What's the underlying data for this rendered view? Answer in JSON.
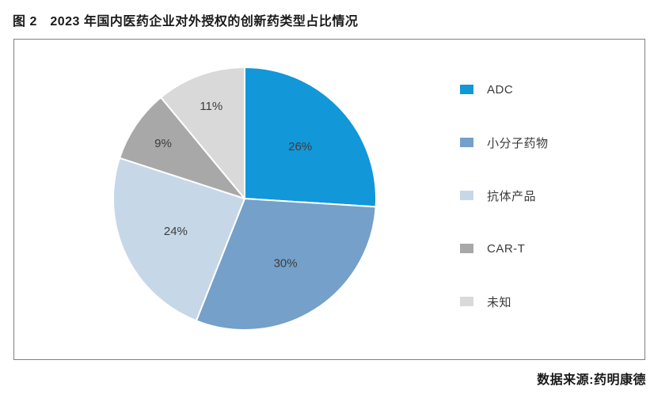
{
  "title": "图 2　2023 年国内医药企业对外授权的创新药类型占比情况",
  "source": "数据来源:药明康德",
  "chart_data": {
    "type": "pie",
    "title": "2023 年国内医药企业对外授权的创新药类型占比情况",
    "start_angle_deg": 0,
    "direction": "clockwise",
    "legend_position": "right",
    "label_format": "percent",
    "slice_border_color": "#ffffff",
    "slices": [
      {
        "id": "adc",
        "label": "ADC",
        "value": 26,
        "label_text": "26%",
        "color": "#1297d9"
      },
      {
        "id": "small-molecule",
        "label": "小分子药物",
        "value": 30,
        "label_text": "30%",
        "color": "#74a0c9"
      },
      {
        "id": "antibody",
        "label": "抗体产品",
        "value": 24,
        "label_text": "24%",
        "color": "#c6d7e8"
      },
      {
        "id": "car-t",
        "label": "CAR-T",
        "value": 9,
        "label_text": "9%",
        "color": "#a8a8a8"
      },
      {
        "id": "unknown",
        "label": "未知",
        "value": 11,
        "label_text": "11%",
        "color": "#d9d9d9"
      }
    ]
  }
}
